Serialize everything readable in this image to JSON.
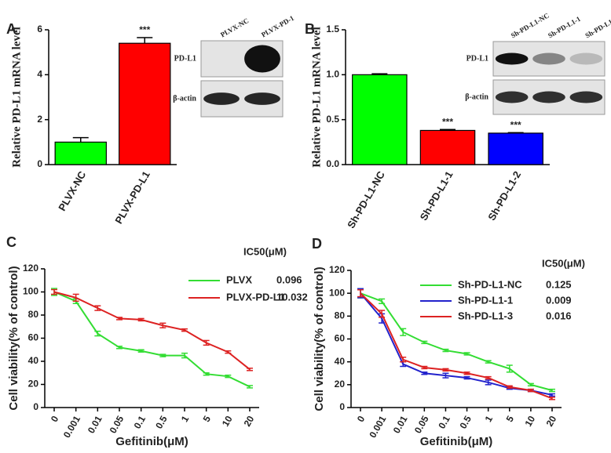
{
  "chart_data": [
    {
      "type": "bar",
      "panel": "A",
      "ylabel": "Relative PD-L1 mRNA level",
      "categories": [
        "PLVX-NC",
        "PLVX-PD-L1"
      ],
      "values": [
        1.0,
        5.4
      ],
      "errors": [
        0.2,
        0.25
      ],
      "colors": [
        "#00ff00",
        "#ff0000"
      ],
      "annotations": [
        null,
        "***"
      ],
      "ylim": [
        0,
        6
      ],
      "yticks": [
        0,
        2,
        4,
        6
      ],
      "blot": {
        "lanes": [
          "PLVX-NC",
          "PLVX-PD-1"
        ],
        "rows": [
          "PD-L1",
          "β-actin"
        ]
      }
    },
    {
      "type": "bar",
      "panel": "B",
      "ylabel": "Relative PD-L1 mRNA level",
      "categories": [
        "Sh-PD-L1-NC",
        "Sh-PD-L1-1",
        "Sh-PD-L1-2"
      ],
      "values": [
        1.0,
        0.38,
        0.35
      ],
      "errors": [
        0.01,
        0.01,
        0.005
      ],
      "colors": [
        "#00ff00",
        "#ff0000",
        "#0000ff"
      ],
      "annotations": [
        null,
        "***",
        "***"
      ],
      "ylim": [
        0,
        1.5
      ],
      "yticks": [
        {
          "value": 0,
          "label": "0.0"
        },
        0.5,
        {
          "value": 1,
          "label": "1.0"
        },
        1.5
      ],
      "blot": {
        "lanes": [
          "Sh-PD-L1-NC",
          "Sh-PD-L1-1",
          "Sh-PD-L1-2"
        ],
        "rows": [
          "PD-L1",
          "β-actin"
        ]
      }
    },
    {
      "type": "line",
      "panel": "C",
      "xlabel": "Gefitinib(μM)",
      "ylabel": "Cell viability(% of control)",
      "legend_title": "IC50(μM)",
      "categories": [
        "0",
        "0.001",
        "0.01",
        "0.05",
        "0.1",
        "0.5",
        "1",
        "5",
        "10",
        "20"
      ],
      "ylim": [
        0,
        120
      ],
      "yticks": [
        0,
        20,
        40,
        60,
        80,
        100,
        120
      ],
      "series": [
        {
          "name": "PLVX",
          "ic50": "0.096",
          "color": "#33dd33",
          "values": [
            100,
            92,
            64,
            52,
            49,
            45,
            45,
            29,
            27,
            18
          ],
          "errors": [
            3,
            2,
            2,
            1,
            1,
            1,
            2,
            1,
            1,
            1
          ]
        },
        {
          "name": "PLVX-PD-L1",
          "ic50": "10.032",
          "color": "#dd2222",
          "values": [
            100,
            95,
            86,
            77,
            76,
            71,
            67,
            56,
            48,
            33
          ],
          "errors": [
            2,
            3,
            2,
            1,
            1,
            2,
            1,
            2,
            1,
            1
          ]
        }
      ]
    },
    {
      "type": "line",
      "panel": "D",
      "xlabel": "Gefitinib(μM)",
      "ylabel": "Cell viability(% of control)",
      "legend_title": "IC50(μM)",
      "categories": [
        "0",
        "0.001",
        "0.01",
        "0.05",
        "0.1",
        "0.5",
        "1",
        "5",
        "10",
        "20"
      ],
      "ylim": [
        0,
        120
      ],
      "yticks": [
        0,
        20,
        40,
        60,
        80,
        100,
        120
      ],
      "series": [
        {
          "name": "Sh-PD-L1-NC",
          "ic50": "0.125",
          "color": "#33dd33",
          "values": [
            100,
            93,
            66,
            57,
            50,
            47,
            40,
            34,
            20,
            15
          ],
          "errors": [
            4,
            2,
            3,
            1,
            1,
            1,
            1,
            3,
            1,
            1
          ]
        },
        {
          "name": "Sh-PD-L1-1",
          "ic50": "0.009",
          "color": "#2222cc",
          "values": [
            100,
            78,
            38,
            30,
            28,
            26,
            22,
            17,
            15,
            11
          ],
          "errors": [
            4,
            4,
            2,
            1,
            2,
            1,
            2,
            1,
            1,
            1
          ]
        },
        {
          "name": "Sh-PD-L1-3",
          "ic50": "0.016",
          "color": "#dd2222",
          "values": [
            100,
            82,
            42,
            35,
            33,
            30,
            26,
            18,
            15,
            8
          ],
          "errors": [
            3,
            3,
            2,
            1,
            1,
            1,
            1,
            1,
            1,
            1
          ]
        }
      ]
    }
  ]
}
